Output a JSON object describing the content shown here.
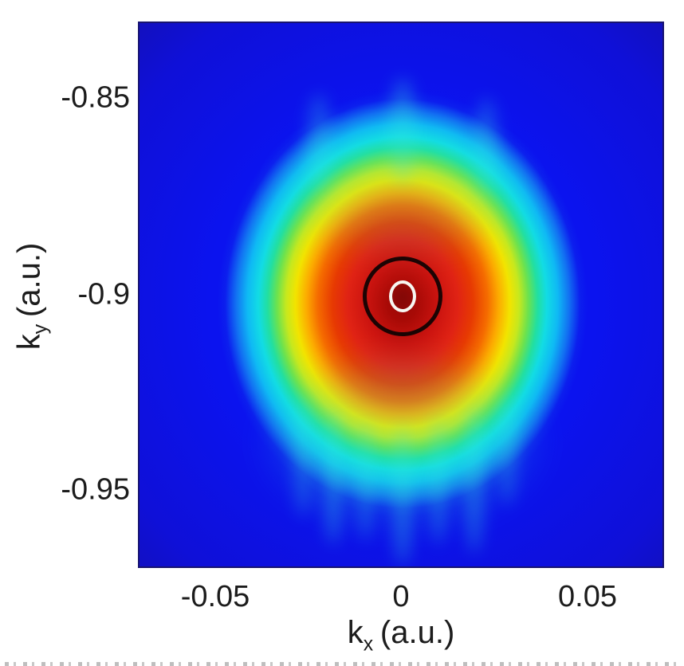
{
  "figure": {
    "kind": "photoelectron-momentum-distribution",
    "background_color": "#ffffff",
    "frame_color": "#181470"
  },
  "chart_data": {
    "type": "heatmap",
    "title": "",
    "xlabel": {
      "base": "k",
      "sub": "x",
      "unit": "(a.u.)"
    },
    "ylabel": {
      "base": "k",
      "sub": "y",
      "unit": "(a.u.)"
    },
    "x_tick_labels": [
      "-0.05",
      "0",
      "0.05"
    ],
    "y_tick_labels": [
      "-0.85",
      "-0.9",
      "-0.95"
    ],
    "x_ticks": [
      -0.05,
      0,
      0.05
    ],
    "y_ticks": [
      -0.85,
      -0.9,
      -0.95
    ],
    "xlim": [
      -0.07,
      0.07
    ],
    "ylim": [
      -0.97,
      -0.83
    ],
    "grid": false,
    "legend": false,
    "colormap": "jet",
    "peak_center": {
      "kx": 0.0,
      "ky": -0.9
    },
    "intensity_bands_au": [
      {
        "band": "dark-red-core",
        "hex": "#9a0808",
        "radius": 0.005
      },
      {
        "band": "red",
        "hex": "#e02314",
        "radius": 0.018
      },
      {
        "band": "orange",
        "hex": "#f56c00",
        "radius": 0.024
      },
      {
        "band": "yellow",
        "hex": "#f2e400",
        "radius": 0.029
      },
      {
        "band": "green",
        "hex": "#6ce24e",
        "radius": 0.034
      },
      {
        "band": "cyan",
        "hex": "#12dce4",
        "radius": 0.041
      },
      {
        "band": "sky-blue",
        "hex": "#0fb9f4",
        "radius": 0.049
      },
      {
        "band": "blue",
        "hex": "#0b13ef",
        "radius": 0.06
      },
      {
        "band": "deep-blue-bg",
        "hex": "#150fa8",
        "radius": 0.07
      }
    ],
    "annotations": [
      {
        "shape": "circle",
        "center_kx": 0.0,
        "center_ky": -0.9,
        "radius_au": 0.0105,
        "stroke": "#000000",
        "stroke_px": 5
      },
      {
        "shape": "ellipse",
        "center_kx": 0.0,
        "center_ky": -0.9,
        "rx_au": 0.0036,
        "ry_au": 0.0041,
        "stroke": "#ffffff",
        "stroke_px": 4.5
      }
    ]
  }
}
